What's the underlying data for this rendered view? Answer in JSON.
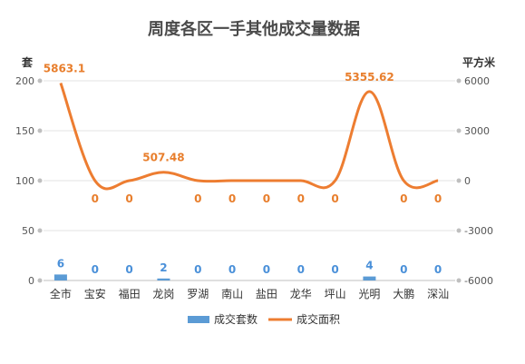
{
  "chart_data": {
    "type": "bar+line",
    "title": "周度各区一手其他成交量数据",
    "categories": [
      "全市",
      "宝安",
      "福田",
      "龙岗",
      "罗湖",
      "南山",
      "盐田",
      "龙华",
      "坪山",
      "光明",
      "大鹏",
      "深汕"
    ],
    "series": [
      {
        "name": "成交套数",
        "type": "bar",
        "axis": "left",
        "values": [
          6,
          0,
          0,
          2,
          0,
          0,
          0,
          0,
          0,
          4,
          0,
          0
        ],
        "labels": [
          "6",
          "0",
          "0",
          "2",
          "0",
          "0",
          "0",
          "0",
          "0",
          "4",
          "0",
          "0"
        ],
        "color": "#5b9bd5"
      },
      {
        "name": "成交面积",
        "type": "line",
        "axis": "right",
        "values": [
          5863.1,
          0,
          0,
          507.48,
          0,
          0,
          0,
          0,
          0,
          5355.62,
          0,
          0
        ],
        "labels": [
          "5863.1",
          "0",
          "0",
          "507.48",
          "0",
          "0",
          "0",
          "0",
          "0",
          "5355.62",
          "0",
          "0"
        ],
        "color": "#ed7d31"
      }
    ],
    "y_left": {
      "label": "套",
      "min": 0,
      "max": 200,
      "ticks": [
        "0",
        "50",
        "100",
        "150",
        "200"
      ]
    },
    "y_right": {
      "label": "平方米",
      "min": -6000,
      "max": 6000,
      "ticks": [
        "-6000",
        "-3000",
        "0",
        "3000",
        "6000"
      ]
    },
    "legend_position": "bottom",
    "grid": true
  }
}
